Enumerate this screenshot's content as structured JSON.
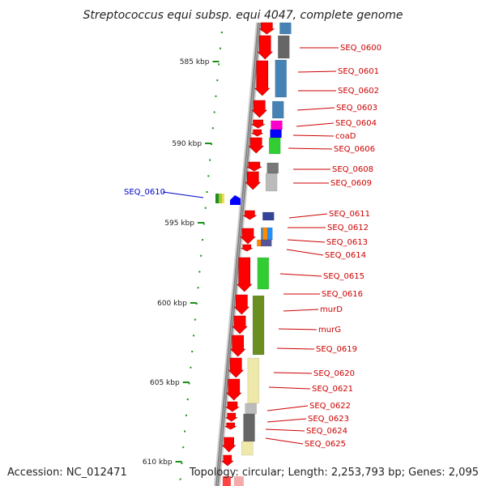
{
  "title": "Streptococcus equi subsp. equi 4047, complete genome",
  "footer": {
    "accession": "Accession: NC_012471",
    "summary": "Topology: circular; Length: 2,253,793 bp; Genes: 2,095"
  },
  "scale_labels": [
    "585 kbp",
    "590 kbp",
    "595 kbp",
    "600 kbp",
    "605 kbp",
    "610 kbp"
  ],
  "colors": {
    "gene_red": "#ff0000",
    "label_red": "#cc0000",
    "label_blue": "#0000cc",
    "tick_green": "#1a8f1a",
    "backbone": "#8c8c8c"
  },
  "genes": [
    {
      "name": "SEQ_0600",
      "color": "#cc0000"
    },
    {
      "name": "SEQ_0601",
      "color": "#cc0000"
    },
    {
      "name": "SEQ_0602",
      "color": "#cc0000"
    },
    {
      "name": "SEQ_0603",
      "color": "#cc0000"
    },
    {
      "name": "SEQ_0604",
      "color": "#cc0000"
    },
    {
      "name": "coaD",
      "color": "#cc0000"
    },
    {
      "name": "SEQ_0606",
      "color": "#cc0000"
    },
    {
      "name": "SEQ_0608",
      "color": "#cc0000"
    },
    {
      "name": "SEQ_0609",
      "color": "#cc0000"
    },
    {
      "name": "SEQ_0610",
      "color": "#0000cc"
    },
    {
      "name": "SEQ_0611",
      "color": "#cc0000"
    },
    {
      "name": "SEQ_0612",
      "color": "#cc0000"
    },
    {
      "name": "SEQ_0613",
      "color": "#cc0000"
    },
    {
      "name": "SEQ_0614",
      "color": "#cc0000"
    },
    {
      "name": "SEQ_0615",
      "color": "#cc0000"
    },
    {
      "name": "SEQ_0616",
      "color": "#cc0000"
    },
    {
      "name": "murD",
      "color": "#cc0000"
    },
    {
      "name": "murG",
      "color": "#cc0000"
    },
    {
      "name": "SEQ_0619",
      "color": "#cc0000"
    },
    {
      "name": "SEQ_0620",
      "color": "#cc0000"
    },
    {
      "name": "SEQ_0621",
      "color": "#cc0000"
    },
    {
      "name": "SEQ_0622",
      "color": "#cc0000"
    },
    {
      "name": "SEQ_0623",
      "color": "#cc0000"
    },
    {
      "name": "SEQ_0624",
      "color": "#cc0000"
    },
    {
      "name": "SEQ_0625",
      "color": "#cc0000"
    }
  ]
}
